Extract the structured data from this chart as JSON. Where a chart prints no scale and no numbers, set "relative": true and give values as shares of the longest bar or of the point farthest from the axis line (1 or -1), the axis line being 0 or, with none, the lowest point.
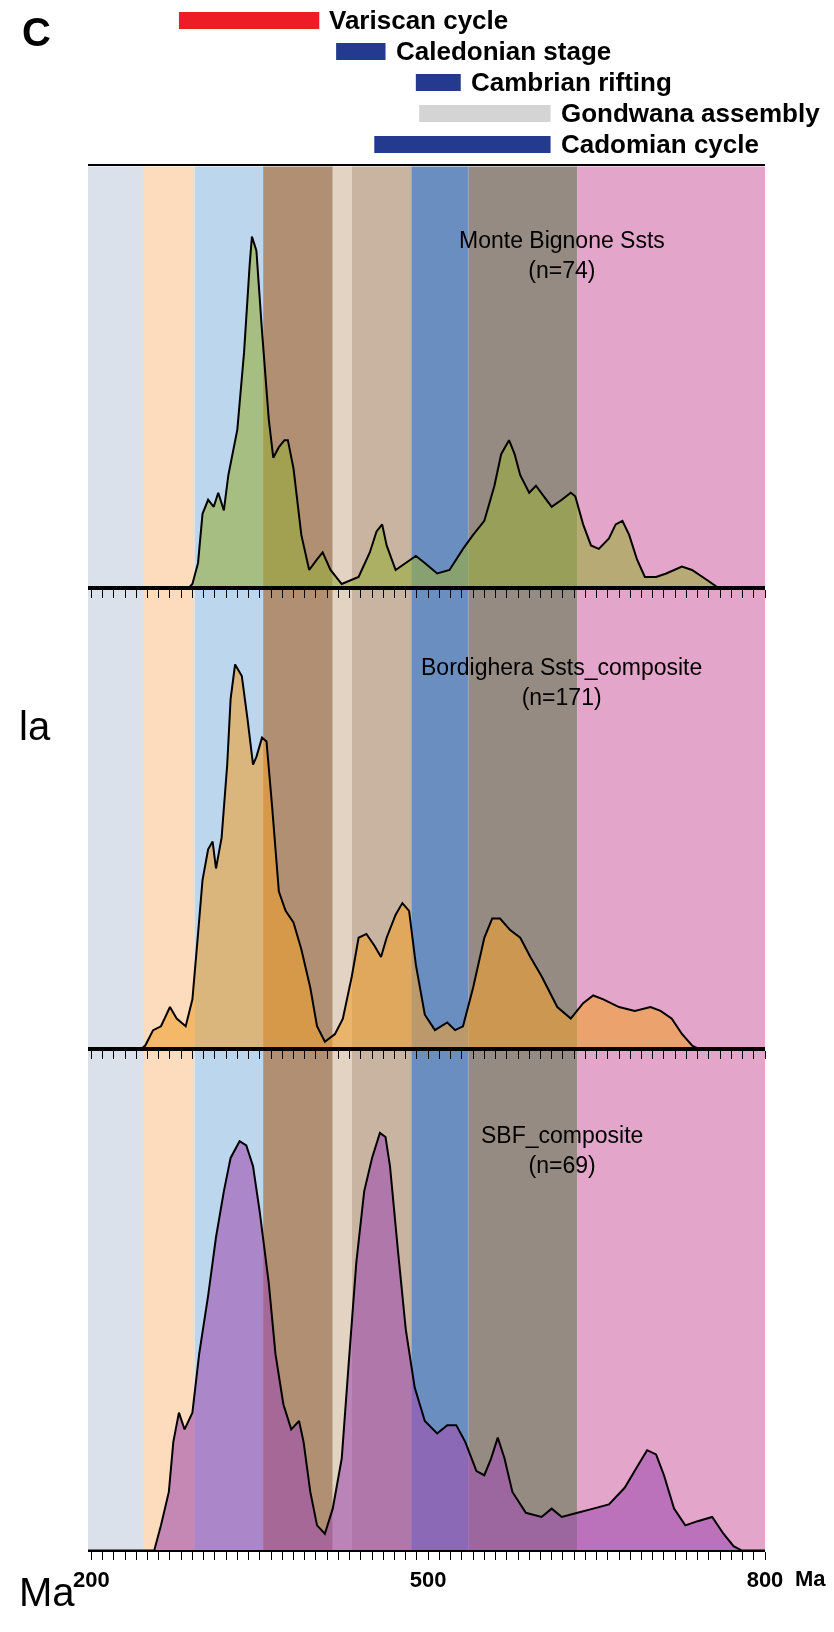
{
  "chart_data": [
    {
      "type": "bar",
      "orientation": "horizontal",
      "annotations": [
        "C"
      ],
      "tick_labels": "y",
      "xlim": [
        197,
        800
      ],
      "categories": [
        "Variscan cycle",
        "Caledonian stage",
        "Cambrian rifting",
        "Gondwana assembly",
        "Cadomian cycle"
      ],
      "base": [
        278,
        418,
        489,
        492,
        452
      ],
      "values": [
        125,
        44,
        40,
        117,
        157
      ],
      "colors": [
        "#ee1c25",
        "#233a8f",
        "#233a8f",
        "#d4d4d4",
        "#233a8f"
      ]
    },
    {
      "type": "area",
      "relative": true,
      "title": "Monte Bignone Ssts\n(n=74)",
      "tick_labels": false,
      "xlim": [
        197,
        800
      ],
      "grid": false,
      "xticks": [
        200,
        {
          "value": 210,
          "label": null
        },
        {
          "value": 220,
          "label": null
        },
        {
          "value": 230,
          "label": null
        },
        {
          "value": 240,
          "label": null
        },
        {
          "value": 250,
          "label": null
        },
        {
          "value": 260,
          "label": null
        },
        {
          "value": 270,
          "label": null
        },
        {
          "value": 280,
          "label": null
        },
        {
          "value": 290,
          "label": null
        },
        {
          "value": 300,
          "label": null
        },
        {
          "value": 310,
          "label": null
        },
        {
          "value": 320,
          "label": null
        },
        {
          "value": 330,
          "label": null
        },
        {
          "value": 340,
          "label": null
        },
        {
          "value": 350,
          "label": null
        },
        {
          "value": 360,
          "label": null
        },
        {
          "value": 370,
          "label": null
        },
        {
          "value": 380,
          "label": null
        },
        {
          "value": 390,
          "label": null
        },
        {
          "value": 400,
          "label": null
        },
        {
          "value": 410,
          "label": null
        },
        {
          "value": 420,
          "label": null
        },
        {
          "value": 430,
          "label": null
        },
        {
          "value": 440,
          "label": null
        },
        {
          "value": 450,
          "label": null
        },
        {
          "value": 460,
          "label": null
        },
        {
          "value": 470,
          "label": null
        },
        {
          "value": 480,
          "label": null
        },
        {
          "value": 490,
          "label": null
        },
        500,
        {
          "value": 510,
          "label": null
        },
        {
          "value": 520,
          "label": null
        },
        {
          "value": 530,
          "label": null
        },
        {
          "value": 540,
          "label": null
        },
        {
          "value": 550,
          "label": null
        },
        {
          "value": 560,
          "label": null
        },
        {
          "value": 570,
          "label": null
        },
        {
          "value": 580,
          "label": null
        },
        {
          "value": 590,
          "label": null
        },
        {
          "value": 600,
          "label": null
        },
        {
          "value": 610,
          "label": null
        },
        {
          "value": 620,
          "label": null
        },
        {
          "value": 630,
          "label": null
        },
        {
          "value": 640,
          "label": null
        },
        {
          "value": 650,
          "label": null
        },
        {
          "value": 660,
          "label": null
        },
        {
          "value": 670,
          "label": null
        },
        {
          "value": 680,
          "label": null
        },
        {
          "value": 690,
          "label": null
        },
        {
          "value": 700,
          "label": null
        },
        {
          "value": 710,
          "label": null
        },
        {
          "value": 720,
          "label": null
        },
        {
          "value": 730,
          "label": null
        },
        {
          "value": 740,
          "label": null
        },
        {
          "value": 750,
          "label": null
        },
        {
          "value": 760,
          "label": null
        },
        {
          "value": 770,
          "label": null
        },
        {
          "value": 780,
          "label": null
        },
        {
          "value": 790,
          "label": null
        },
        800
      ],
      "bands": [
        {
          "axis": "x",
          "from": 197,
          "to": 246,
          "color": "#dbe1ea"
        },
        {
          "axis": "x",
          "from": 246,
          "to": 292,
          "color": "#fcdcbc"
        },
        {
          "axis": "x",
          "from": 292,
          "to": 353,
          "color": "#bcd6ee"
        },
        {
          "axis": "x",
          "from": 353,
          "to": 415,
          "color": "#b08f72"
        },
        {
          "axis": "x",
          "from": 415,
          "to": 432,
          "color": "#e2d3c3"
        },
        {
          "axis": "x",
          "from": 432,
          "to": 485,
          "color": "#c8b4a0"
        },
        {
          "axis": "x",
          "from": 485,
          "to": 536,
          "color": "#6b8ec0"
        },
        {
          "axis": "x",
          "from": 536,
          "to": 633,
          "color": "#968b82"
        },
        {
          "axis": "x",
          "from": 633,
          "to": 800,
          "color": "#e3a5c9"
        }
      ],
      "series": [
        {
          "color": "#9aae3c",
          "x": [
            197,
            287,
            290,
            295,
            299,
            304,
            309,
            313,
            318,
            322,
            330,
            336,
            341,
            343,
            347,
            352,
            358,
            362,
            367,
            372,
            375,
            380,
            387,
            394,
            401,
            406,
            413,
            423,
            438,
            448,
            454,
            459,
            463,
            471,
            480,
            489,
            497,
            508,
            519,
            531,
            540,
            550,
            559,
            565,
            572,
            577,
            582,
            590,
            596,
            603,
            610,
            619,
            627,
            631,
            638,
            645,
            652,
            661,
            667,
            673,
            679,
            686,
            693,
            703,
            712,
            726,
            735,
            749,
            758,
            768,
            800
          ],
          "values": [
            0,
            0,
            0.01,
            0.07,
            0.21,
            0.25,
            0.23,
            0.27,
            0.22,
            0.32,
            0.45,
            0.67,
            0.92,
            1.0,
            0.96,
            0.73,
            0.48,
            0.37,
            0.4,
            0.42,
            0.42,
            0.34,
            0.15,
            0.05,
            0.08,
            0.1,
            0.05,
            0.01,
            0.03,
            0.1,
            0.16,
            0.18,
            0.12,
            0.05,
            0.07,
            0.09,
            0.07,
            0.04,
            0.05,
            0.11,
            0.15,
            0.19,
            0.29,
            0.38,
            0.42,
            0.38,
            0.32,
            0.27,
            0.29,
            0.26,
            0.23,
            0.25,
            0.27,
            0.26,
            0.18,
            0.12,
            0.11,
            0.14,
            0.18,
            0.19,
            0.15,
            0.08,
            0.03,
            0.03,
            0.04,
            0.06,
            0.05,
            0.02,
            0,
            0,
            0
          ]
        }
      ]
    },
    {
      "type": "area",
      "relative": true,
      "title": "Bordighera Ssts_composite\n(n=171)",
      "annotations": [
        "la"
      ],
      "tick_labels": false,
      "xlim": [
        197,
        800
      ],
      "grid": false,
      "xticks": [
        200,
        {
          "value": 210,
          "label": null
        },
        {
          "value": 220,
          "label": null
        },
        {
          "value": 230,
          "label": null
        },
        {
          "value": 240,
          "label": null
        },
        {
          "value": 250,
          "label": null
        },
        {
          "value": 260,
          "label": null
        },
        {
          "value": 270,
          "label": null
        },
        {
          "value": 280,
          "label": null
        },
        {
          "value": 290,
          "label": null
        },
        {
          "value": 300,
          "label": null
        },
        {
          "value": 310,
          "label": null
        },
        {
          "value": 320,
          "label": null
        },
        {
          "value": 330,
          "label": null
        },
        {
          "value": 340,
          "label": null
        },
        {
          "value": 350,
          "label": null
        },
        {
          "value": 360,
          "label": null
        },
        {
          "value": 370,
          "label": null
        },
        {
          "value": 380,
          "label": null
        },
        {
          "value": 390,
          "label": null
        },
        {
          "value": 400,
          "label": null
        },
        {
          "value": 410,
          "label": null
        },
        {
          "value": 420,
          "label": null
        },
        {
          "value": 430,
          "label": null
        },
        {
          "value": 440,
          "label": null
        },
        {
          "value": 450,
          "label": null
        },
        {
          "value": 460,
          "label": null
        },
        {
          "value": 470,
          "label": null
        },
        {
          "value": 480,
          "label": null
        },
        {
          "value": 490,
          "label": null
        },
        500,
        {
          "value": 510,
          "label": null
        },
        {
          "value": 520,
          "label": null
        },
        {
          "value": 530,
          "label": null
        },
        {
          "value": 540,
          "label": null
        },
        {
          "value": 550,
          "label": null
        },
        {
          "value": 560,
          "label": null
        },
        {
          "value": 570,
          "label": null
        },
        {
          "value": 580,
          "label": null
        },
        {
          "value": 590,
          "label": null
        },
        {
          "value": 600,
          "label": null
        },
        {
          "value": 610,
          "label": null
        },
        {
          "value": 620,
          "label": null
        },
        {
          "value": 630,
          "label": null
        },
        {
          "value": 640,
          "label": null
        },
        {
          "value": 650,
          "label": null
        },
        {
          "value": 660,
          "label": null
        },
        {
          "value": 670,
          "label": null
        },
        {
          "value": 680,
          "label": null
        },
        {
          "value": 690,
          "label": null
        },
        {
          "value": 700,
          "label": null
        },
        {
          "value": 710,
          "label": null
        },
        {
          "value": 720,
          "label": null
        },
        {
          "value": 730,
          "label": null
        },
        {
          "value": 740,
          "label": null
        },
        {
          "value": 750,
          "label": null
        },
        {
          "value": 760,
          "label": null
        },
        {
          "value": 770,
          "label": null
        },
        {
          "value": 780,
          "label": null
        },
        {
          "value": 790,
          "label": null
        },
        800
      ],
      "bands": [
        {
          "axis": "x",
          "from": 197,
          "to": 246,
          "color": "#dbe1ea"
        },
        {
          "axis": "x",
          "from": 246,
          "to": 292,
          "color": "#fcdcbc"
        },
        {
          "axis": "x",
          "from": 292,
          "to": 353,
          "color": "#bcd6ee"
        },
        {
          "axis": "x",
          "from": 353,
          "to": 415,
          "color": "#b08f72"
        },
        {
          "axis": "x",
          "from": 415,
          "to": 432,
          "color": "#e2d3c3"
        },
        {
          "axis": "x",
          "from": 432,
          "to": 485,
          "color": "#c8b4a0"
        },
        {
          "axis": "x",
          "from": 485,
          "to": 536,
          "color": "#6b8ec0"
        },
        {
          "axis": "x",
          "from": 536,
          "to": 633,
          "color": "#968b82"
        },
        {
          "axis": "x",
          "from": 633,
          "to": 800,
          "color": "#e3a5c9"
        }
      ],
      "series": [
        {
          "color": "#f0a030",
          "x": [
            197,
            244,
            248,
            255,
            262,
            270,
            276,
            284,
            290,
            295,
            299,
            304,
            308,
            311,
            316,
            321,
            324,
            328,
            334,
            339,
            344,
            347,
            352,
            356,
            361,
            367,
            373,
            380,
            387,
            395,
            401,
            408,
            417,
            424,
            432,
            438,
            445,
            452,
            458,
            463,
            471,
            477,
            483,
            489,
            497,
            506,
            517,
            524,
            531,
            540,
            550,
            557,
            564,
            573,
            582,
            591,
            601,
            615,
            627,
            638,
            647,
            656,
            670,
            684,
            698,
            707,
            717,
            726,
            735,
            742,
            800
          ],
          "values": [
            0,
            0,
            0.01,
            0.05,
            0.06,
            0.11,
            0.08,
            0.06,
            0.13,
            0.3,
            0.44,
            0.52,
            0.54,
            0.47,
            0.55,
            0.74,
            0.91,
            1.0,
            0.97,
            0.86,
            0.74,
            0.76,
            0.81,
            0.8,
            0.63,
            0.41,
            0.36,
            0.33,
            0.26,
            0.16,
            0.06,
            0.02,
            0.04,
            0.08,
            0.19,
            0.29,
            0.3,
            0.27,
            0.24,
            0.29,
            0.35,
            0.38,
            0.36,
            0.22,
            0.09,
            0.05,
            0.07,
            0.05,
            0.06,
            0.16,
            0.29,
            0.34,
            0.34,
            0.31,
            0.29,
            0.24,
            0.19,
            0.11,
            0.08,
            0.12,
            0.14,
            0.13,
            0.11,
            0.1,
            0.11,
            0.1,
            0.08,
            0.04,
            0.01,
            0,
            0
          ]
        }
      ]
    },
    {
      "type": "area",
      "relative": true,
      "title": "SBF_composite\n(n=69)",
      "xlabel": "Ma",
      "annotations": [
        "Ma"
      ],
      "tick_labels": "x",
      "xlim": [
        197,
        800
      ],
      "grid": false,
      "xticks": [
        200,
        {
          "value": 210,
          "label": null
        },
        {
          "value": 220,
          "label": null
        },
        {
          "value": 230,
          "label": null
        },
        {
          "value": 240,
          "label": null
        },
        {
          "value": 250,
          "label": null
        },
        {
          "value": 260,
          "label": null
        },
        {
          "value": 270,
          "label": null
        },
        {
          "value": 280,
          "label": null
        },
        {
          "value": 290,
          "label": null
        },
        {
          "value": 300,
          "label": null
        },
        {
          "value": 310,
          "label": null
        },
        {
          "value": 320,
          "label": null
        },
        {
          "value": 330,
          "label": null
        },
        {
          "value": 340,
          "label": null
        },
        {
          "value": 350,
          "label": null
        },
        {
          "value": 360,
          "label": null
        },
        {
          "value": 370,
          "label": null
        },
        {
          "value": 380,
          "label": null
        },
        {
          "value": 390,
          "label": null
        },
        {
          "value": 400,
          "label": null
        },
        {
          "value": 410,
          "label": null
        },
        {
          "value": 420,
          "label": null
        },
        {
          "value": 430,
          "label": null
        },
        {
          "value": 440,
          "label": null
        },
        {
          "value": 450,
          "label": null
        },
        {
          "value": 460,
          "label": null
        },
        {
          "value": 470,
          "label": null
        },
        {
          "value": 480,
          "label": null
        },
        {
          "value": 490,
          "label": null
        },
        500,
        {
          "value": 510,
          "label": null
        },
        {
          "value": 520,
          "label": null
        },
        {
          "value": 530,
          "label": null
        },
        {
          "value": 540,
          "label": null
        },
        {
          "value": 550,
          "label": null
        },
        {
          "value": 560,
          "label": null
        },
        {
          "value": 570,
          "label": null
        },
        {
          "value": 580,
          "label": null
        },
        {
          "value": 590,
          "label": null
        },
        {
          "value": 600,
          "label": null
        },
        {
          "value": 610,
          "label": null
        },
        {
          "value": 620,
          "label": null
        },
        {
          "value": 630,
          "label": null
        },
        {
          "value": 640,
          "label": null
        },
        {
          "value": 650,
          "label": null
        },
        {
          "value": 660,
          "label": null
        },
        {
          "value": 670,
          "label": null
        },
        {
          "value": 680,
          "label": null
        },
        {
          "value": 690,
          "label": null
        },
        {
          "value": 700,
          "label": null
        },
        {
          "value": 710,
          "label": null
        },
        {
          "value": 720,
          "label": null
        },
        {
          "value": 730,
          "label": null
        },
        {
          "value": 740,
          "label": null
        },
        {
          "value": 750,
          "label": null
        },
        {
          "value": 760,
          "label": null
        },
        {
          "value": 770,
          "label": null
        },
        {
          "value": 780,
          "label": null
        },
        {
          "value": 790,
          "label": null
        },
        800
      ],
      "bands": [
        {
          "axis": "x",
          "from": 197,
          "to": 246,
          "color": "#dbe1ea"
        },
        {
          "axis": "x",
          "from": 246,
          "to": 292,
          "color": "#fcdcbc"
        },
        {
          "axis": "x",
          "from": 292,
          "to": 353,
          "color": "#bcd6ee"
        },
        {
          "axis": "x",
          "from": 353,
          "to": 415,
          "color": "#b08f72"
        },
        {
          "axis": "x",
          "from": 415,
          "to": 432,
          "color": "#e2d3c3"
        },
        {
          "axis": "x",
          "from": 432,
          "to": 485,
          "color": "#c8b4a0"
        },
        {
          "axis": "x",
          "from": 485,
          "to": 536,
          "color": "#6b8ec0"
        },
        {
          "axis": "x",
          "from": 536,
          "to": 633,
          "color": "#968b82"
        },
        {
          "axis": "x",
          "from": 633,
          "to": 800,
          "color": "#e3a5c9"
        }
      ],
      "series": [
        {
          "color": "#a050b0",
          "x": [
            197,
            256,
            262,
            269,
            273,
            278,
            283,
            290,
            296,
            304,
            311,
            318,
            324,
            332,
            338,
            344,
            350,
            358,
            364,
            371,
            378,
            385,
            389,
            395,
            401,
            408,
            415,
            423,
            429,
            436,
            443,
            450,
            457,
            462,
            466,
            473,
            480,
            488,
            497,
            508,
            517,
            525,
            533,
            543,
            550,
            556,
            562,
            568,
            575,
            587,
            601,
            610,
            619,
            633,
            647,
            661,
            675,
            686,
            695,
            703,
            710,
            719,
            729,
            740,
            753,
            763,
            772,
            779,
            800
          ],
          "values": [
            0,
            0,
            0.06,
            0.14,
            0.26,
            0.33,
            0.29,
            0.33,
            0.47,
            0.61,
            0.75,
            0.86,
            0.94,
            0.98,
            0.97,
            0.92,
            0.81,
            0.64,
            0.47,
            0.35,
            0.29,
            0.31,
            0.26,
            0.14,
            0.06,
            0.04,
            0.1,
            0.22,
            0.44,
            0.69,
            0.86,
            0.94,
            1.0,
            0.99,
            0.92,
            0.72,
            0.53,
            0.39,
            0.31,
            0.28,
            0.3,
            0.3,
            0.26,
            0.19,
            0.18,
            0.22,
            0.27,
            0.22,
            0.14,
            0.09,
            0.08,
            0.1,
            0.08,
            0.09,
            0.1,
            0.11,
            0.15,
            0.2,
            0.24,
            0.23,
            0.18,
            0.1,
            0.06,
            0.07,
            0.08,
            0.04,
            0.01,
            0,
            0
          ]
        }
      ]
    }
  ]
}
